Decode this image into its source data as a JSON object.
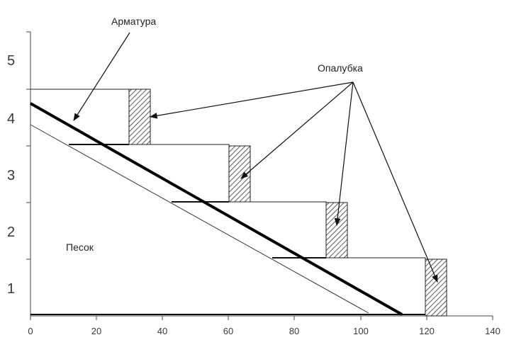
{
  "diagram": {
    "labels": {
      "reinforcement": "Арматура",
      "formwork": "Опалубка",
      "sand": "Песок"
    },
    "x_axis": {
      "ticks": [
        "0",
        "20",
        "40",
        "60",
        "80",
        "100",
        "120",
        "140"
      ]
    },
    "y_axis": {
      "ticks": [
        "1",
        "2",
        "3",
        "4",
        "5"
      ]
    }
  }
}
